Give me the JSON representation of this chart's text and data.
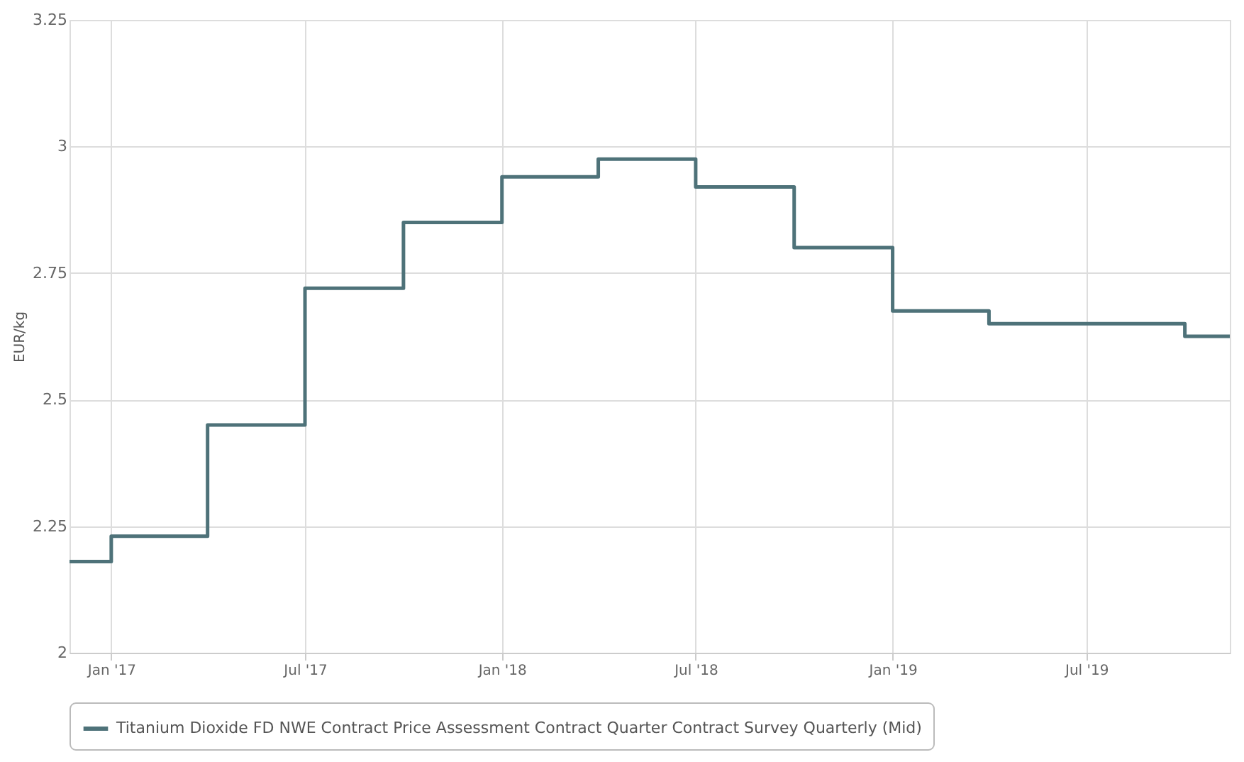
{
  "chart_data": {
    "type": "step",
    "ylabel": "EUR/kg",
    "x": [
      "2016-11-23",
      "2017-01-01",
      "2017-04-01",
      "2017-07-01",
      "2017-10-01",
      "2018-01-01",
      "2018-04-01",
      "2018-07-01",
      "2018-10-01",
      "2019-01-01",
      "2019-04-01",
      "2019-07-01",
      "2019-10-01",
      "2019-11-12"
    ],
    "series": [
      {
        "name": "Titanium Dioxide FD NWE Contract Price Assessment Contract Quarter Contract Survey Quarterly (Mid)",
        "color": "#4e7279",
        "values": [
          2.18,
          2.23,
          2.45,
          2.72,
          2.85,
          2.94,
          2.975,
          2.92,
          2.8,
          2.675,
          2.65,
          2.65,
          2.625,
          2.625
        ]
      }
    ],
    "xlim": [
      "2016-11-23",
      "2019-11-12"
    ],
    "xticks": [
      {
        "value": "2017-01-01",
        "label": "Jan '17"
      },
      {
        "value": "2017-07-01",
        "label": "Jul '17"
      },
      {
        "value": "2018-01-01",
        "label": "Jan '18"
      },
      {
        "value": "2018-07-01",
        "label": "Jul '18"
      },
      {
        "value": "2019-01-01",
        "label": "Jan '19"
      },
      {
        "value": "2019-07-01",
        "label": "Jul '19"
      }
    ],
    "ylim": [
      2,
      3.25
    ],
    "yticks": [
      2,
      2.25,
      2.5,
      2.75,
      3,
      3.25
    ],
    "grid": true,
    "legend": "bottom",
    "line_style": "solid",
    "marker": "none"
  }
}
